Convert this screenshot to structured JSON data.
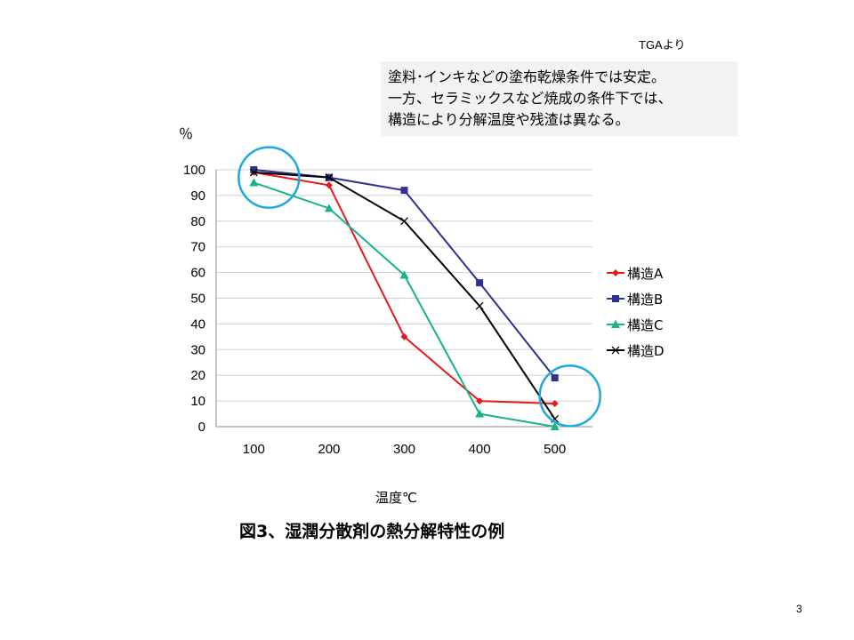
{
  "source_note": "TGAより",
  "callout": {
    "lines": [
      "塗料･インキなどの塗布乾燥条件では安定。",
      "一方、セラミックスなど焼成の条件下では、",
      "構造により分解温度や残渣は異なる。"
    ]
  },
  "page_number": "3",
  "caption": "図3、湿潤分散剤の熱分解特性の例",
  "chart_data": {
    "type": "line",
    "title": "",
    "ylabel": "％",
    "xlabel": "温度℃",
    "categories": [
      "100",
      "200",
      "300",
      "400",
      "500"
    ],
    "ylim": [
      0,
      100
    ],
    "yticks": [
      0,
      10,
      20,
      30,
      40,
      50,
      60,
      70,
      80,
      90,
      100
    ],
    "grid": true,
    "legend_position": "right",
    "series": [
      {
        "name": "構造A",
        "values": [
          99,
          94,
          35,
          10,
          9
        ],
        "color": "#e8191a",
        "marker": "diamond"
      },
      {
        "name": "構造B",
        "values": [
          100,
          97,
          92,
          56,
          19
        ],
        "color": "#2e3192",
        "marker": "square"
      },
      {
        "name": "構造C",
        "values": [
          95,
          85,
          59,
          5,
          0
        ],
        "color": "#17b388",
        "marker": "triangle"
      },
      {
        "name": "構造D",
        "values": [
          99,
          97,
          80,
          47,
          3
        ],
        "color": "#000000",
        "marker": "x"
      }
    ],
    "annotations": [
      {
        "type": "circle",
        "category": "100",
        "value": 97,
        "color": "#1ba9e0"
      },
      {
        "type": "circle",
        "category": "500",
        "value": 12,
        "color": "#1ba9e0"
      }
    ]
  }
}
